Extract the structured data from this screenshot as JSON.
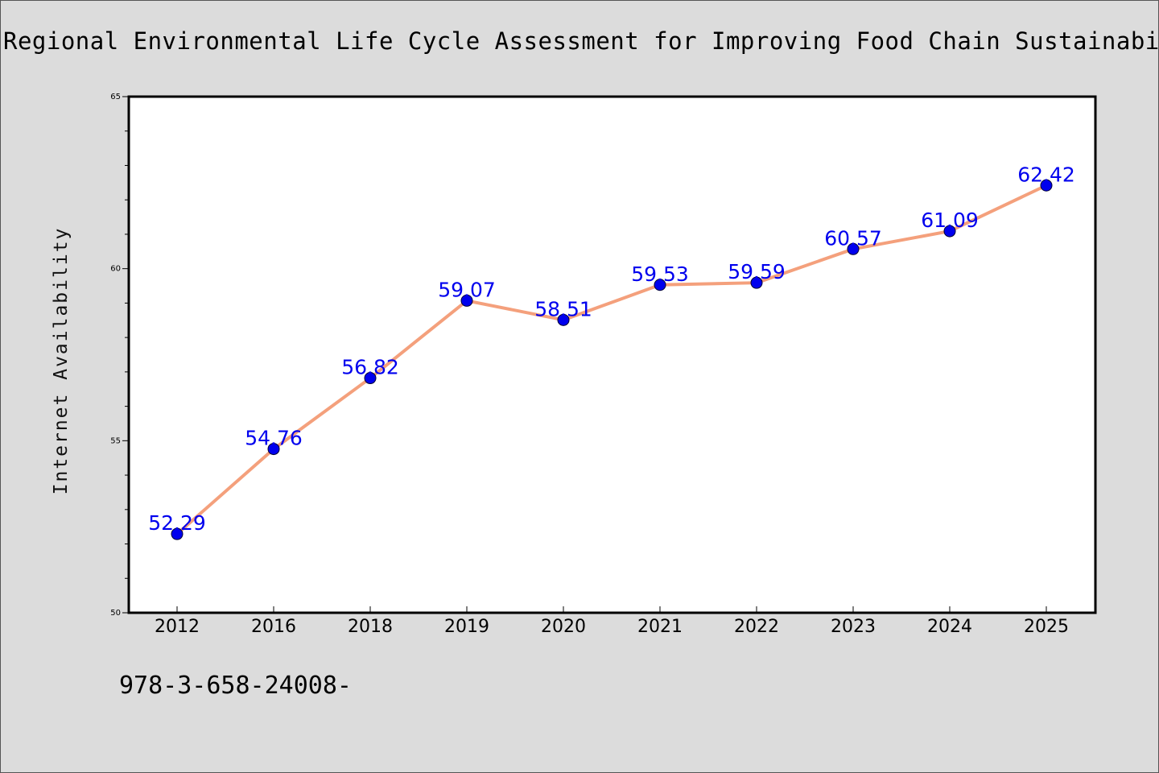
{
  "chart_data": {
    "type": "line",
    "title": "Regional Environmental Life Cycle Assessment for Improving Food Chain Sustainabi",
    "xlabel": "",
    "ylabel": "Internet Availability",
    "categories": [
      "2012",
      "2016",
      "2018",
      "2019",
      "2020",
      "2021",
      "2022",
      "2023",
      "2024",
      "2025"
    ],
    "series": [
      {
        "values": [
          52.29,
          54.76,
          56.82,
          59.07,
          58.51,
          59.53,
          59.59,
          60.57,
          61.09,
          62.42
        ],
        "labels": [
          "52.29",
          "54.76",
          "56.82",
          "59.07",
          "58.51",
          "59.53",
          "59.59",
          "60.57",
          "61.09",
          "62.42"
        ]
      }
    ],
    "ylim": [
      50,
      65
    ],
    "yticks": [
      "50",
      "55",
      "60",
      "65"
    ],
    "grid": false,
    "legend": "none",
    "colors": {
      "line": "#f4a07c",
      "marker": "#0000ee",
      "data_label": "#0000ee",
      "background": "#dcdcdc",
      "plot_area": "#ffffff"
    }
  },
  "footnote": "978-3-658-24008-"
}
